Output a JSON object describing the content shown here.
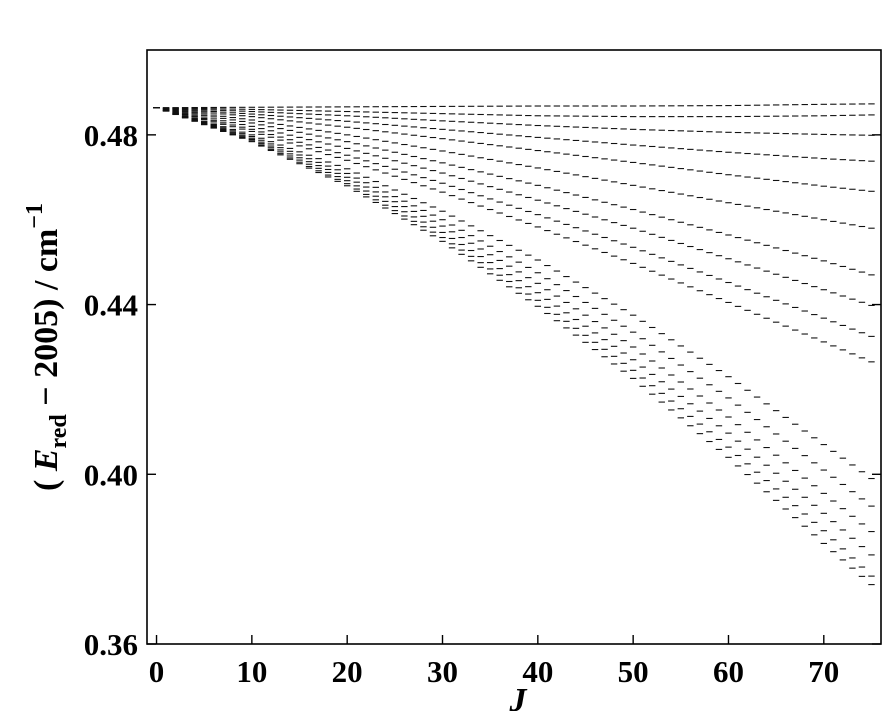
{
  "chart_data": {
    "type": "scatter",
    "title": "",
    "xlabel": "J",
    "ylabel": {
      "prefix": "( ",
      "symbol": "E",
      "subscript": "red",
      "middle": " − 2005) / cm",
      "superscript": "−1"
    },
    "xlim": [
      -1,
      76
    ],
    "ylim": [
      0.36,
      0.5
    ],
    "xticks": [
      0,
      10,
      20,
      30,
      40,
      50,
      60,
      70
    ],
    "xtick_labels": [
      "0",
      "10",
      "20",
      "30",
      "40",
      "50",
      "60",
      "70"
    ],
    "yticks": [
      0.36,
      0.4,
      0.44,
      0.48
    ],
    "ytick_labels": [
      "0.36",
      "0.40",
      "0.44",
      "0.48"
    ],
    "grid": false,
    "marker": "horizontal dash",
    "origin_value": 0.4864,
    "series": [
      {
        "values": [
          [
            0,
            0.4864
          ],
          [
            10,
            0.4865
          ],
          [
            20,
            0.4866
          ],
          [
            30,
            0.4867
          ],
          [
            40,
            0.4868
          ],
          [
            50,
            0.4868
          ],
          [
            60,
            0.4869
          ],
          [
            70,
            0.4872
          ],
          [
            75,
            0.4873
          ]
        ]
      },
      {
        "values": [
          [
            0,
            0.4864
          ],
          [
            10,
            0.486
          ],
          [
            20,
            0.4855
          ],
          [
            30,
            0.485
          ],
          [
            40,
            0.4845
          ],
          [
            50,
            0.4843
          ],
          [
            60,
            0.4843
          ],
          [
            70,
            0.4845
          ],
          [
            75,
            0.4847
          ]
        ]
      },
      {
        "values": [
          [
            0,
            0.4864
          ],
          [
            10,
            0.4855
          ],
          [
            20,
            0.4845
          ],
          [
            30,
            0.4833
          ],
          [
            40,
            0.4822
          ],
          [
            50,
            0.4813
          ],
          [
            60,
            0.4806
          ],
          [
            70,
            0.4801
          ],
          [
            75,
            0.4799
          ]
        ]
      },
      {
        "values": [
          [
            0,
            0.4864
          ],
          [
            10,
            0.4849
          ],
          [
            20,
            0.4832
          ],
          [
            30,
            0.4813
          ],
          [
            40,
            0.4794
          ],
          [
            50,
            0.4776
          ],
          [
            60,
            0.4759
          ],
          [
            70,
            0.4744
          ],
          [
            75,
            0.4738
          ]
        ]
      },
      {
        "values": [
          [
            0,
            0.4864
          ],
          [
            10,
            0.4843
          ],
          [
            20,
            0.4818
          ],
          [
            30,
            0.4791
          ],
          [
            40,
            0.4763
          ],
          [
            50,
            0.4735
          ],
          [
            60,
            0.4706
          ],
          [
            70,
            0.4679
          ],
          [
            75,
            0.4667
          ]
        ]
      },
      {
        "values": [
          [
            0,
            0.4864
          ],
          [
            10,
            0.4835
          ],
          [
            20,
            0.48
          ],
          [
            30,
            0.4762
          ],
          [
            40,
            0.4722
          ],
          [
            50,
            0.4681
          ],
          [
            60,
            0.464
          ],
          [
            70,
            0.46
          ],
          [
            75,
            0.458
          ]
        ]
      },
      {
        "values": [
          [
            0,
            0.4864
          ],
          [
            10,
            0.4828
          ],
          [
            20,
            0.4784
          ],
          [
            30,
            0.4734
          ],
          [
            40,
            0.4681
          ],
          [
            50,
            0.4624
          ],
          [
            60,
            0.4564
          ],
          [
            70,
            0.4503
          ],
          [
            75,
            0.447
          ]
        ]
      },
      {
        "values": [
          [
            0,
            0.4864
          ],
          [
            10,
            0.482
          ],
          [
            20,
            0.4768
          ],
          [
            30,
            0.471
          ],
          [
            40,
            0.4646
          ],
          [
            50,
            0.458
          ],
          [
            60,
            0.4508
          ],
          [
            70,
            0.4435
          ],
          [
            75,
            0.4398
          ]
        ]
      },
      {
        "values": [
          [
            0,
            0.4864
          ],
          [
            10,
            0.4813
          ],
          [
            20,
            0.4752
          ],
          [
            30,
            0.4686
          ],
          [
            40,
            0.4612
          ],
          [
            50,
            0.4535
          ],
          [
            60,
            0.4452
          ],
          [
            70,
            0.4368
          ],
          [
            75,
            0.4325
          ]
        ]
      },
      {
        "values": [
          [
            0,
            0.4864
          ],
          [
            10,
            0.4808
          ],
          [
            20,
            0.474
          ],
          [
            30,
            0.4665
          ],
          [
            40,
            0.4583
          ],
          [
            50,
            0.4497
          ],
          [
            60,
            0.4405
          ],
          [
            70,
            0.4312
          ],
          [
            75,
            0.4265
          ]
        ]
      },
      {
        "values": [
          [
            0,
            0.4864
          ],
          [
            10,
            0.48
          ],
          [
            20,
            0.472
          ],
          [
            30,
            0.462
          ],
          [
            40,
            0.4505
          ],
          [
            50,
            0.4375
          ],
          [
            60,
            0.423
          ],
          [
            70,
            0.407
          ],
          [
            75,
            0.399
          ]
        ]
      },
      {
        "values": [
          [
            0,
            0.4864
          ],
          [
            10,
            0.4796
          ],
          [
            20,
            0.4709
          ],
          [
            30,
            0.46
          ],
          [
            40,
            0.4475
          ],
          [
            50,
            0.4335
          ],
          [
            60,
            0.418
          ],
          [
            70,
            0.401
          ],
          [
            75,
            0.3925
          ]
        ]
      },
      {
        "values": [
          [
            0,
            0.4864
          ],
          [
            10,
            0.4792
          ],
          [
            20,
            0.47
          ],
          [
            30,
            0.4585
          ],
          [
            40,
            0.445
          ],
          [
            50,
            0.43
          ],
          [
            60,
            0.4135
          ],
          [
            70,
            0.3955
          ],
          [
            75,
            0.3865
          ]
        ]
      },
      {
        "values": [
          [
            0,
            0.4864
          ],
          [
            10,
            0.4789
          ],
          [
            20,
            0.4692
          ],
          [
            30,
            0.457
          ],
          [
            40,
            0.4428
          ],
          [
            50,
            0.427
          ],
          [
            60,
            0.4097
          ],
          [
            70,
            0.3908
          ],
          [
            75,
            0.381
          ]
        ]
      },
      {
        "values": [
          [
            0,
            0.4864
          ],
          [
            10,
            0.4786
          ],
          [
            20,
            0.4685
          ],
          [
            30,
            0.4558
          ],
          [
            40,
            0.441
          ],
          [
            50,
            0.4245
          ],
          [
            60,
            0.4064
          ],
          [
            70,
            0.3867
          ],
          [
            75,
            0.376
          ]
        ]
      },
      {
        "values": [
          [
            0,
            0.4864
          ],
          [
            10,
            0.4784
          ],
          [
            20,
            0.468
          ],
          [
            30,
            0.4549
          ],
          [
            40,
            0.4396
          ],
          [
            50,
            0.4226
          ],
          [
            60,
            0.404
          ],
          [
            70,
            0.3837
          ],
          [
            75,
            0.374
          ]
        ]
      }
    ]
  }
}
